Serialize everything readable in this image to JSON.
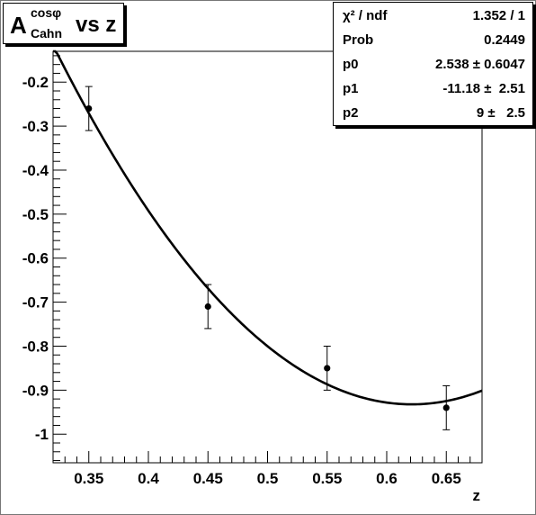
{
  "title": {
    "main": "A",
    "superscript": "cosφ",
    "subscript": "Cahn",
    "rest": "vs z"
  },
  "stats": {
    "rows": [
      {
        "name": "χ² / ndf",
        "value": "1.352 / 1"
      },
      {
        "name": "Prob",
        "value": "0.2449"
      },
      {
        "name": "p0",
        "value": "2.538 ± 0.6047"
      },
      {
        "name": "p1",
        "value": "-11.18 ±  2.51"
      },
      {
        "name": "p2",
        "value": "9 ±   2.5"
      }
    ]
  },
  "chart_data": {
    "type": "scatter",
    "xlabel": "z",
    "ylabel": "",
    "xlim": [
      0.32,
      0.68
    ],
    "ylim": [
      -1.065,
      -0.13
    ],
    "x_ticks": [
      0.35,
      0.4,
      0.45,
      0.5,
      0.55,
      0.6,
      0.65
    ],
    "x_tick_labels": [
      "0.35",
      "0.4",
      "0.45",
      "0.5",
      "0.55",
      "0.6",
      "0.65"
    ],
    "y_ticks": [
      -0.2,
      -0.3,
      -0.4,
      -0.5,
      -0.6,
      -0.7,
      -0.8,
      -0.9,
      -1.0
    ],
    "y_tick_labels": [
      "-0.2",
      "-0.3",
      "-0.4",
      "-0.5",
      "-0.6",
      "-0.7",
      "-0.8",
      "-0.9",
      "-1"
    ],
    "grid": false,
    "points": [
      {
        "x": 0.35,
        "y": -0.26,
        "err": 0.05
      },
      {
        "x": 0.45,
        "y": -0.71,
        "err": 0.05
      },
      {
        "x": 0.55,
        "y": -0.85,
        "err": 0.05
      },
      {
        "x": 0.65,
        "y": -0.94,
        "err": 0.05
      }
    ],
    "fit": {
      "function": "pol2",
      "p0": 2.538,
      "p1": -11.18,
      "p2": 9,
      "x_range": [
        0.32,
        0.68
      ],
      "display_offset": 0.0018
    }
  }
}
